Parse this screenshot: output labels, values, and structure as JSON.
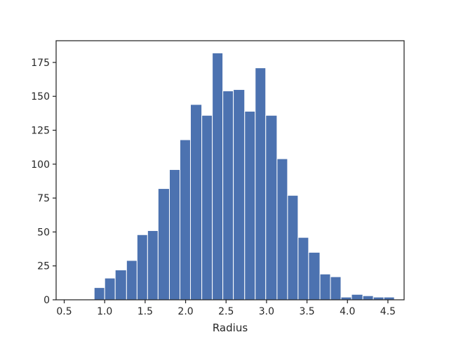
{
  "chart_data": {
    "type": "histogram",
    "title": "",
    "xlabel": "Radius",
    "ylabel": "",
    "xlim": [
      0.4,
      4.7
    ],
    "ylim": [
      0,
      191
    ],
    "grid": false,
    "bar_color": "#4c72b0",
    "bar_edge_color": "#ffffff",
    "x_ticks": [
      {
        "value": 0.5,
        "label": "0.5"
      },
      {
        "value": 1.0,
        "label": "1.0"
      },
      {
        "value": 1.5,
        "label": "1.5"
      },
      {
        "value": 2.0,
        "label": "2.0"
      },
      {
        "value": 2.5,
        "label": "2.5"
      },
      {
        "value": 3.0,
        "label": "3.0"
      },
      {
        "value": 3.5,
        "label": "3.5"
      },
      {
        "value": 4.0,
        "label": "4.0"
      },
      {
        "value": 4.5,
        "label": "4.5"
      }
    ],
    "y_ticks": [
      {
        "value": 0,
        "label": "0"
      },
      {
        "value": 25,
        "label": "25"
      },
      {
        "value": 50,
        "label": "50"
      },
      {
        "value": 75,
        "label": "75"
      },
      {
        "value": 100,
        "label": "100"
      },
      {
        "value": 125,
        "label": "125"
      },
      {
        "value": 150,
        "label": "150"
      },
      {
        "value": 175,
        "label": "175"
      }
    ],
    "bins": [
      {
        "start": 0.6,
        "end": 0.73,
        "count": 0
      },
      {
        "start": 0.73,
        "end": 0.87,
        "count": 0
      },
      {
        "start": 0.87,
        "end": 1.0,
        "count": 9
      },
      {
        "start": 1.0,
        "end": 1.13,
        "count": 16
      },
      {
        "start": 1.13,
        "end": 1.27,
        "count": 22
      },
      {
        "start": 1.27,
        "end": 1.4,
        "count": 29
      },
      {
        "start": 1.4,
        "end": 1.53,
        "count": 48
      },
      {
        "start": 1.53,
        "end": 1.66,
        "count": 51
      },
      {
        "start": 1.66,
        "end": 1.8,
        "count": 82
      },
      {
        "start": 1.8,
        "end": 1.93,
        "count": 96
      },
      {
        "start": 1.93,
        "end": 2.06,
        "count": 118
      },
      {
        "start": 2.06,
        "end": 2.2,
        "count": 144
      },
      {
        "start": 2.2,
        "end": 2.33,
        "count": 136
      },
      {
        "start": 2.33,
        "end": 2.46,
        "count": 182
      },
      {
        "start": 2.46,
        "end": 2.59,
        "count": 154
      },
      {
        "start": 2.59,
        "end": 2.73,
        "count": 155
      },
      {
        "start": 2.73,
        "end": 2.86,
        "count": 139
      },
      {
        "start": 2.86,
        "end": 2.99,
        "count": 171
      },
      {
        "start": 2.99,
        "end": 3.13,
        "count": 136
      },
      {
        "start": 3.13,
        "end": 3.26,
        "count": 104
      },
      {
        "start": 3.26,
        "end": 3.39,
        "count": 77
      },
      {
        "start": 3.39,
        "end": 3.52,
        "count": 46
      },
      {
        "start": 3.52,
        "end": 3.66,
        "count": 35
      },
      {
        "start": 3.66,
        "end": 3.79,
        "count": 19
      },
      {
        "start": 3.79,
        "end": 3.92,
        "count": 17
      },
      {
        "start": 3.92,
        "end": 4.05,
        "count": 2
      },
      {
        "start": 4.05,
        "end": 4.19,
        "count": 4
      },
      {
        "start": 4.19,
        "end": 4.32,
        "count": 3
      },
      {
        "start": 4.32,
        "end": 4.45,
        "count": 2
      },
      {
        "start": 4.45,
        "end": 4.58,
        "count": 2
      }
    ]
  }
}
